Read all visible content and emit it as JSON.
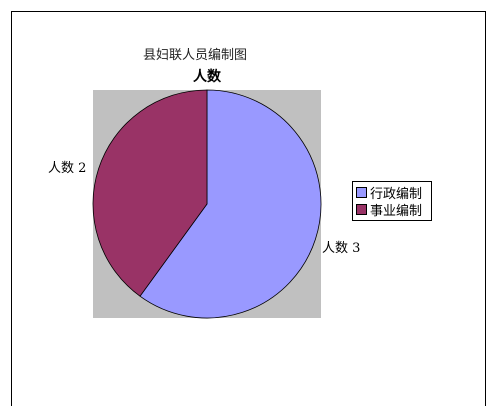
{
  "chart_data": {
    "type": "pie",
    "title": "县妇联人员编制图",
    "series_title": "人数",
    "categories": [
      "行政编制",
      "事业编制"
    ],
    "values": [
      3,
      2
    ],
    "colors": [
      "#9999ff",
      "#993366"
    ],
    "plot_background": "#c0c0c0",
    "data_labels": [
      "人数 3",
      "人数 2"
    ],
    "legend_position": "right"
  }
}
